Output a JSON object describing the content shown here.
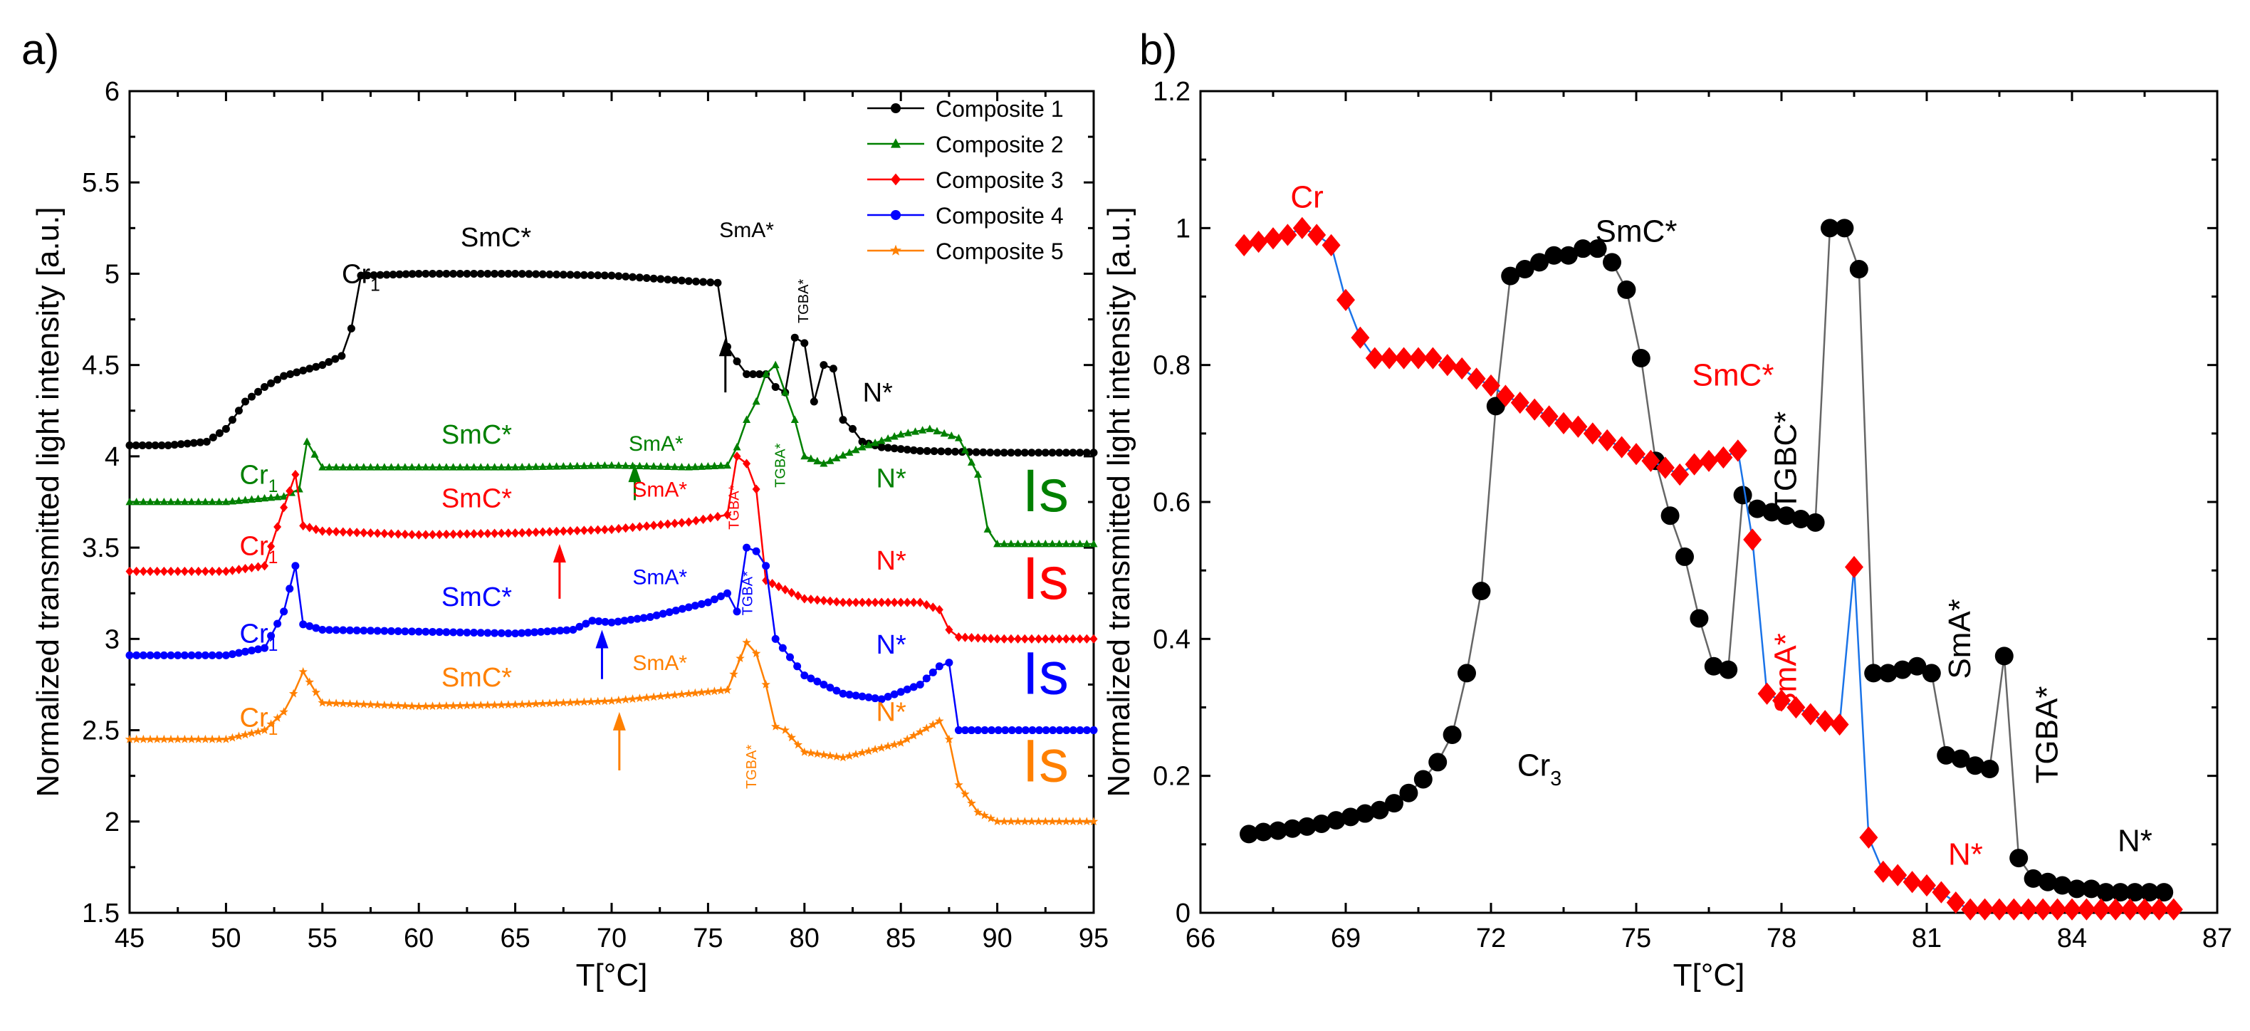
{
  "chart_data": [
    {
      "panel_label": "a)",
      "type": "line",
      "xlabel": "T[°C]",
      "ylabel": "Normalized transmitted light intensity [a.u.]",
      "xlim": [
        45,
        95
      ],
      "ylim": [
        1.5,
        6
      ],
      "xticks": [
        "45",
        "50",
        "55",
        "60",
        "65",
        "70",
        "75",
        "80",
        "85",
        "90",
        "95"
      ],
      "yticks": [
        "1.5",
        "2",
        "2.5",
        "3",
        "3.5",
        "4",
        "4.5",
        "5",
        "5.5",
        "6"
      ],
      "series": [
        {
          "name": "Composite 1",
          "color": "#000000",
          "marker": "circle",
          "x": [
            45,
            47,
            49,
            50,
            51,
            52,
            53,
            54,
            55,
            56,
            56.5,
            57,
            60,
            65,
            70,
            74,
            75.5,
            76,
            76.5,
            77,
            78,
            78.5,
            79,
            79.5,
            80,
            80.5,
            81,
            81.5,
            82,
            82.5,
            83,
            84,
            86,
            90,
            95
          ],
          "y": [
            4.06,
            4.06,
            4.08,
            4.15,
            4.3,
            4.38,
            4.44,
            4.47,
            4.5,
            4.55,
            4.7,
            4.99,
            5.0,
            5.0,
            4.99,
            4.96,
            4.95,
            4.6,
            4.52,
            4.45,
            4.45,
            4.38,
            4.35,
            4.65,
            4.62,
            4.3,
            4.5,
            4.48,
            4.2,
            4.15,
            4.08,
            4.05,
            4.03,
            4.02,
            4.02
          ]
        },
        {
          "name": "Composite 2",
          "color": "#008000",
          "marker": "triangle",
          "x": [
            45,
            50,
            53,
            53.8,
            54.2,
            55,
            60,
            65,
            70,
            74,
            76,
            76.5,
            77,
            77.5,
            78,
            78.5,
            79,
            79.5,
            80,
            81,
            83,
            85,
            86.5,
            88,
            89,
            89.5,
            90,
            95
          ],
          "y": [
            3.75,
            3.75,
            3.78,
            3.82,
            4.08,
            3.94,
            3.94,
            3.94,
            3.95,
            3.94,
            3.95,
            4.05,
            4.2,
            4.3,
            4.45,
            4.5,
            4.35,
            4.2,
            4.0,
            3.96,
            4.05,
            4.12,
            4.15,
            4.1,
            3.9,
            3.6,
            3.52,
            3.52
          ]
        },
        {
          "name": "Composite 3",
          "color": "#ff0000",
          "marker": "diamond",
          "x": [
            45,
            50,
            52,
            53,
            53.6,
            54,
            55,
            60,
            65,
            70,
            74,
            75.5,
            76,
            76.5,
            77,
            77.5,
            78,
            80,
            82,
            84,
            86,
            87,
            87.5,
            88,
            90,
            95
          ],
          "y": [
            3.37,
            3.37,
            3.4,
            3.72,
            3.9,
            3.62,
            3.59,
            3.57,
            3.58,
            3.6,
            3.64,
            3.67,
            3.68,
            4.0,
            3.96,
            3.82,
            3.32,
            3.22,
            3.2,
            3.2,
            3.2,
            3.16,
            3.05,
            3.01,
            3.0,
            3.0
          ]
        },
        {
          "name": "Composite 4",
          "color": "#0000ff",
          "marker": "circle",
          "x": [
            45,
            50,
            52,
            53,
            53.6,
            54,
            55,
            60,
            65,
            68,
            69,
            70,
            72,
            75,
            76,
            76.5,
            77,
            77.5,
            78,
            78.5,
            80,
            82,
            84,
            86,
            87,
            87.5,
            88,
            89,
            95
          ],
          "y": [
            2.91,
            2.91,
            2.95,
            3.15,
            3.4,
            3.08,
            3.05,
            3.04,
            3.03,
            3.05,
            3.1,
            3.09,
            3.12,
            3.2,
            3.25,
            3.15,
            3.5,
            3.48,
            3.4,
            3.0,
            2.8,
            2.7,
            2.67,
            2.75,
            2.85,
            2.87,
            2.5,
            2.5,
            2.5
          ]
        },
        {
          "name": "Composite 5",
          "color": "#ff8000",
          "marker": "star",
          "x": [
            45,
            50,
            52,
            53,
            53.5,
            54,
            55,
            60,
            65,
            70,
            74,
            76,
            77,
            77.5,
            78,
            78.5,
            79,
            80,
            82,
            85,
            87,
            87.5,
            88,
            89,
            90,
            95
          ],
          "y": [
            2.45,
            2.45,
            2.5,
            2.6,
            2.7,
            2.82,
            2.65,
            2.63,
            2.64,
            2.66,
            2.7,
            2.72,
            2.98,
            2.92,
            2.75,
            2.52,
            2.5,
            2.38,
            2.35,
            2.43,
            2.55,
            2.45,
            2.2,
            2.05,
            2.0,
            2.0
          ]
        }
      ],
      "annotations": [
        {
          "text": "SmC*",
          "x": 64,
          "y": 5.15,
          "color": "#000000"
        },
        {
          "text": "Cr1",
          "x": 57,
          "y": 4.95,
          "color": "#000000"
        },
        {
          "text": "SmA*",
          "x": 77,
          "y": 5.2,
          "color": "#000000"
        },
        {
          "text": "TGBA*",
          "x": 80.2,
          "y": 4.85,
          "color": "#000000"
        },
        {
          "text": "N*",
          "x": 83.8,
          "y": 4.3,
          "color": "#000000"
        },
        {
          "text": "Cr1",
          "x": 51.7,
          "y": 3.85,
          "color": "#008000"
        },
        {
          "text": "SmC*",
          "x": 63,
          "y": 4.07,
          "color": "#008000"
        },
        {
          "text": "SmA*",
          "x": 72.3,
          "y": 4.03,
          "color": "#008000"
        },
        {
          "text": "TGBA*",
          "x": 79,
          "y": 3.95,
          "color": "#008000"
        },
        {
          "text": "N*",
          "x": 84.5,
          "y": 3.83,
          "color": "#008000"
        },
        {
          "text": "Is",
          "x": 92.5,
          "y": 3.7,
          "color": "#008000"
        },
        {
          "text": "Cr1",
          "x": 51.7,
          "y": 3.46,
          "color": "#ff0000"
        },
        {
          "text": "SmC*",
          "x": 63,
          "y": 3.72,
          "color": "#ff0000"
        },
        {
          "text": "SmA*",
          "x": 72.5,
          "y": 3.78,
          "color": "#ff0000"
        },
        {
          "text": "TGBA*",
          "x": 76.6,
          "y": 3.72,
          "color": "#ff0000"
        },
        {
          "text": "N*",
          "x": 84.5,
          "y": 3.38,
          "color": "#ff0000"
        },
        {
          "text": "Is",
          "x": 92.5,
          "y": 3.22,
          "color": "#ff0000"
        },
        {
          "text": "Cr1",
          "x": 51.7,
          "y": 2.98,
          "color": "#0000ff"
        },
        {
          "text": "SmC*",
          "x": 63,
          "y": 3.18,
          "color": "#0000ff"
        },
        {
          "text": "SmA*",
          "x": 72.5,
          "y": 3.3,
          "color": "#0000ff"
        },
        {
          "text": "TGBA*",
          "x": 77.3,
          "y": 3.25,
          "color": "#0000ff"
        },
        {
          "text": "N*",
          "x": 84.5,
          "y": 2.92,
          "color": "#0000ff"
        },
        {
          "text": "Is",
          "x": 92.5,
          "y": 2.7,
          "color": "#0000ff"
        },
        {
          "text": "Cr1",
          "x": 51.7,
          "y": 2.52,
          "color": "#ff8000"
        },
        {
          "text": "SmC*",
          "x": 63,
          "y": 2.74,
          "color": "#ff8000"
        },
        {
          "text": "SmA*",
          "x": 72.5,
          "y": 2.83,
          "color": "#ff8000"
        },
        {
          "text": "TGBA*",
          "x": 77.5,
          "y": 2.3,
          "color": "#ff8000"
        },
        {
          "text": "N*",
          "x": 84.5,
          "y": 2.55,
          "color": "#ff8000"
        },
        {
          "text": "Is",
          "x": 92.5,
          "y": 2.22,
          "color": "#ff8000"
        }
      ],
      "arrows": [
        {
          "x": 75.9,
          "y_from": 4.35,
          "y_to": 4.65,
          "color": "#000000"
        },
        {
          "x": 71.2,
          "y_from": 3.76,
          "y_to": 3.96,
          "color": "#008000"
        },
        {
          "x": 67.3,
          "y_from": 3.22,
          "y_to": 3.52,
          "color": "#ff0000"
        },
        {
          "x": 69.5,
          "y_from": 2.78,
          "y_to": 3.05,
          "color": "#0000ff"
        },
        {
          "x": 70.4,
          "y_from": 2.28,
          "y_to": 2.6,
          "color": "#ff8000"
        }
      ]
    },
    {
      "panel_label": "b)",
      "type": "line",
      "xlabel": "T[°C]",
      "ylabel": "Normalized transmitted light intensity [a.u.]",
      "xlim": [
        66,
        87
      ],
      "ylim": [
        0,
        1.2
      ],
      "xticks": [
        "66",
        "69",
        "72",
        "75",
        "78",
        "81",
        "84",
        "87"
      ],
      "yticks": [
        "0",
        "0.2",
        "0.4",
        "0.6",
        "0.8",
        "1",
        "1.2"
      ],
      "series": [
        {
          "name": "Cr3 / black",
          "color": "#000000",
          "marker": "circle",
          "x": [
            67,
            67.3,
            67.6,
            67.9,
            68.2,
            68.5,
            68.8,
            69.1,
            69.4,
            69.7,
            70.0,
            70.3,
            70.6,
            70.9,
            71.2,
            71.5,
            71.8,
            72.1,
            72.4,
            72.7,
            73.0,
            73.3,
            73.6,
            73.9,
            74.2,
            74.5,
            74.8,
            75.1,
            75.4,
            75.7,
            76.0,
            76.3,
            76.6,
            76.9,
            77.2,
            77.5,
            77.8,
            78.1,
            78.4,
            78.7,
            79.0,
            79.3,
            79.6,
            79.9,
            80.2,
            80.5,
            80.8,
            81.1,
            81.4,
            81.7,
            82.0,
            82.3,
            82.6,
            82.9,
            83.2,
            83.5,
            83.8,
            84.1,
            84.4,
            84.7,
            85.0,
            85.3,
            85.6,
            85.9
          ],
          "y": [
            0.115,
            0.118,
            0.12,
            0.123,
            0.126,
            0.13,
            0.135,
            0.14,
            0.145,
            0.15,
            0.16,
            0.175,
            0.195,
            0.22,
            0.26,
            0.35,
            0.47,
            0.74,
            0.93,
            0.94,
            0.95,
            0.96,
            0.96,
            0.97,
            0.97,
            0.95,
            0.91,
            0.81,
            0.66,
            0.58,
            0.52,
            0.43,
            0.36,
            0.355,
            0.61,
            0.59,
            0.585,
            0.58,
            0.575,
            0.57,
            1.0,
            1.0,
            0.94,
            0.35,
            0.35,
            0.355,
            0.36,
            0.35,
            0.23,
            0.225,
            0.215,
            0.21,
            0.375,
            0.08,
            0.05,
            0.045,
            0.04,
            0.035,
            0.035,
            0.03,
            0.03,
            0.03,
            0.03,
            0.03
          ]
        },
        {
          "name": "Cr / red",
          "color": "#ff0000",
          "marker": "diamond",
          "x": [
            66.9,
            67.2,
            67.5,
            67.8,
            68.1,
            68.4,
            68.7,
            69.0,
            69.3,
            69.6,
            69.9,
            70.2,
            70.5,
            70.8,
            71.1,
            71.4,
            71.7,
            72.0,
            72.3,
            72.6,
            72.9,
            73.2,
            73.5,
            73.8,
            74.1,
            74.4,
            74.7,
            75.0,
            75.3,
            75.6,
            75.9,
            76.2,
            76.5,
            76.8,
            77.1,
            77.4,
            77.7,
            78.0,
            78.3,
            78.6,
            78.9,
            79.2,
            79.5,
            79.8,
            80.1,
            80.4,
            80.7,
            81.0,
            81.3,
            81.6,
            81.9,
            82.2,
            82.5,
            82.8,
            83.1,
            83.4,
            83.7,
            84.0,
            84.3,
            84.6,
            84.9,
            85.2,
            85.5,
            85.8,
            86.1
          ],
          "y": [
            0.975,
            0.98,
            0.985,
            0.99,
            1.0,
            0.99,
            0.975,
            0.895,
            0.84,
            0.81,
            0.81,
            0.81,
            0.81,
            0.81,
            0.8,
            0.795,
            0.78,
            0.77,
            0.755,
            0.745,
            0.735,
            0.725,
            0.715,
            0.71,
            0.7,
            0.69,
            0.68,
            0.67,
            0.66,
            0.65,
            0.64,
            0.655,
            0.66,
            0.665,
            0.675,
            0.545,
            0.32,
            0.31,
            0.3,
            0.29,
            0.28,
            0.275,
            0.505,
            0.11,
            0.06,
            0.055,
            0.045,
            0.04,
            0.03,
            0.015,
            0.005,
            0.005,
            0.005,
            0.005,
            0.005,
            0.005,
            0.005,
            0.005,
            0.005,
            0.005,
            0.005,
            0.005,
            0.005,
            0.005,
            0.005
          ]
        }
      ],
      "annotations": [
        {
          "text": "Cr",
          "x": 68.2,
          "y": 1.03,
          "color": "#ff0000"
        },
        {
          "text": "SmC*",
          "x": 75.0,
          "y": 0.98,
          "color": "#000000"
        },
        {
          "text": "SmC*",
          "x": 77.0,
          "y": 0.77,
          "color": "#ff0000"
        },
        {
          "text": "TGBC*",
          "x": 78.3,
          "y": 0.66,
          "color": "#000000",
          "rotate": true
        },
        {
          "text": "SmA*",
          "x": 78.3,
          "y": 0.35,
          "color": "#ff0000",
          "rotate": true
        },
        {
          "text": "SmA*",
          "x": 81.9,
          "y": 0.4,
          "color": "#000000",
          "rotate": true
        },
        {
          "text": "TGBA*",
          "x": 83.7,
          "y": 0.26,
          "color": "#000000",
          "rotate": true
        },
        {
          "text": "Cr3",
          "x": 73.0,
          "y": 0.2,
          "color": "#000000"
        },
        {
          "text": "N*",
          "x": 81.8,
          "y": 0.07,
          "color": "#ff0000"
        },
        {
          "text": "N*",
          "x": 85.3,
          "y": 0.09,
          "color": "#000000"
        }
      ]
    }
  ]
}
